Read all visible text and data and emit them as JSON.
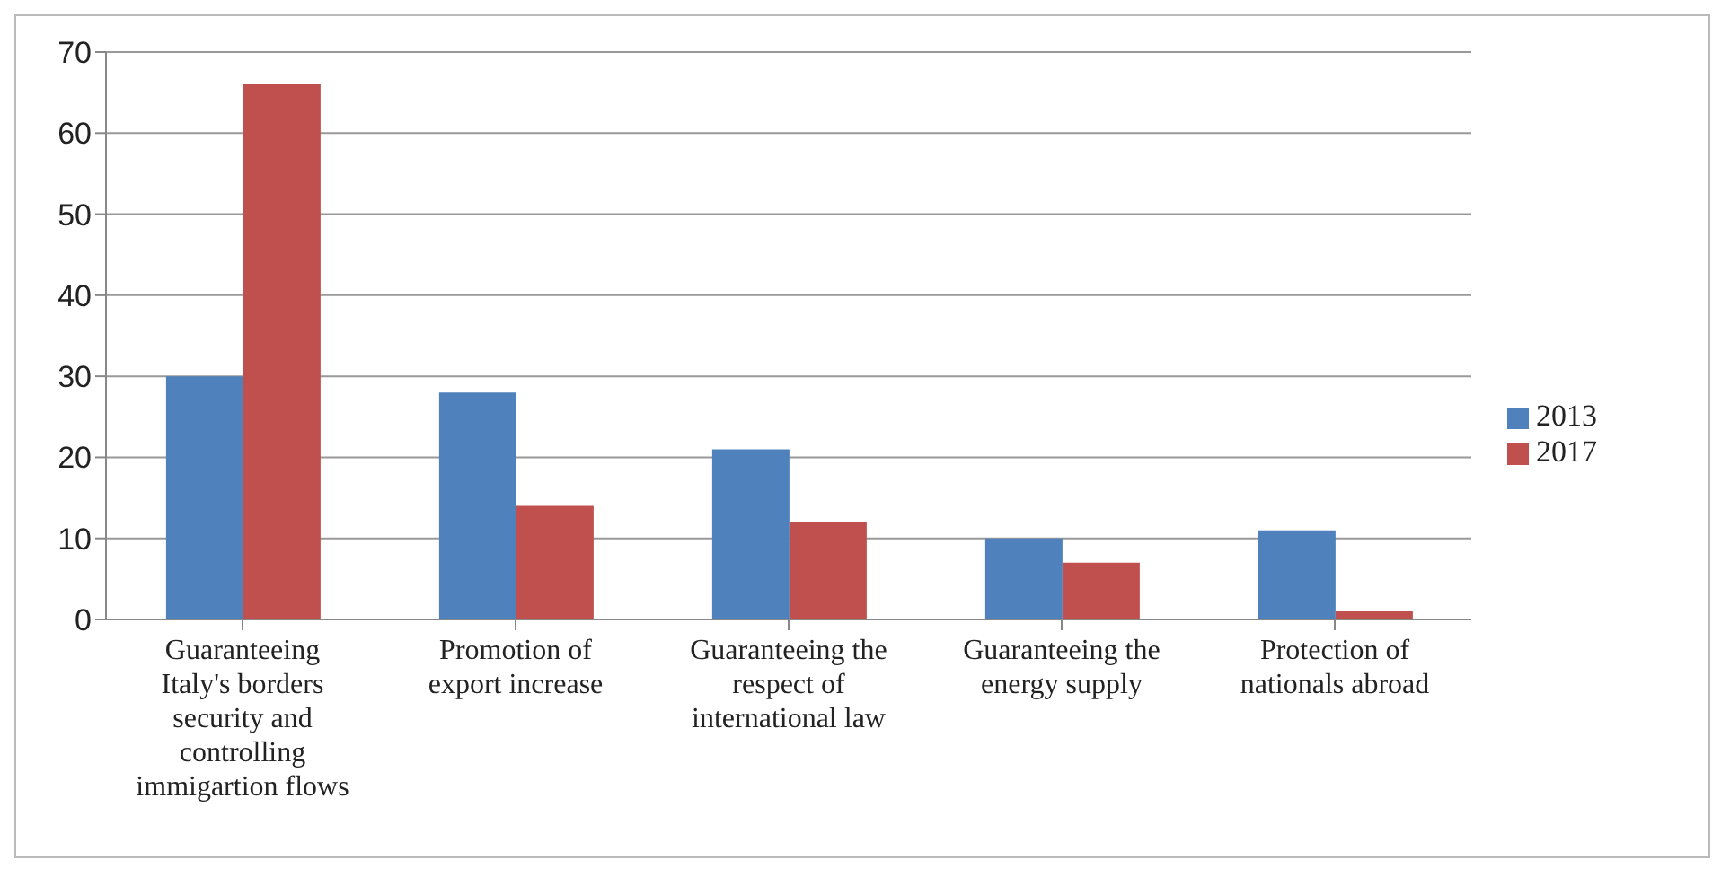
{
  "chart_data": {
    "type": "bar",
    "categories": [
      "Guaranteeing Italy's borders security and controlling immigartion flows",
      "Promotion of export increase",
      "Guaranteeing the respect of international law",
      "Guaranteeing the energy supply",
      "Protection of nationals abroad"
    ],
    "series": [
      {
        "name": "2013",
        "color": "#4f81bd",
        "values": [
          30,
          28,
          21,
          10,
          11
        ]
      },
      {
        "name": "2017",
        "color": "#c0504d",
        "values": [
          66,
          14,
          12,
          7,
          1
        ]
      }
    ],
    "ylim": [
      0,
      70
    ],
    "yticks": [
      0,
      10,
      20,
      30,
      40,
      50,
      60,
      70
    ],
    "grid": "y",
    "legend": "right"
  }
}
